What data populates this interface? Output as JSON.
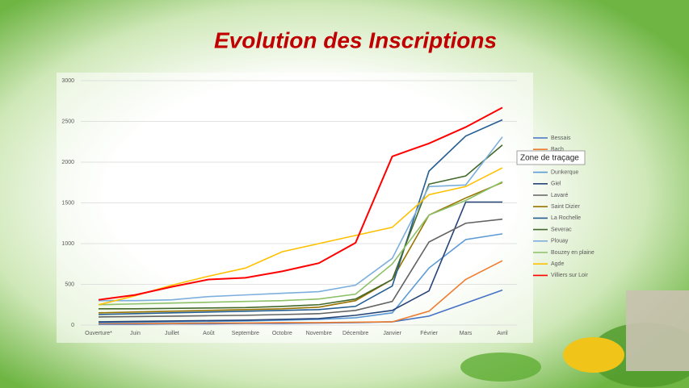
{
  "chart_data": {
    "type": "line",
    "title": "Evolution des Inscriptions",
    "tooltip": "Zone de traçage",
    "categories": [
      "Ouverture*",
      "Juin",
      "Juillet",
      "Août",
      "Septembre",
      "Octobre",
      "Novembre",
      "Décembre",
      "Janvier",
      "Février",
      "Mars",
      "Avril"
    ],
    "ylim": [
      0,
      3000
    ],
    "yticks": [
      0,
      500,
      1000,
      1500,
      2000,
      2500,
      3000
    ],
    "grid": true,
    "legend": "right",
    "series": [
      {
        "name": "Bessais",
        "color": "#4472c4",
        "values": [
          10,
          10,
          15,
          15,
          20,
          20,
          25,
          30,
          40,
          110,
          270,
          430
        ]
      },
      {
        "name": "Bach",
        "color": "#ed7d31",
        "values": [
          20,
          20,
          20,
          25,
          25,
          30,
          30,
          35,
          40,
          170,
          560,
          790
        ]
      },
      {
        "name": "Dunkerque",
        "color": "#5b9bd5",
        "values": [
          30,
          35,
          40,
          45,
          50,
          60,
          70,
          90,
          150,
          700,
          1050,
          1120
        ]
      },
      {
        "name": "Giel",
        "color": "#264478",
        "values": [
          40,
          45,
          50,
          55,
          60,
          70,
          80,
          120,
          180,
          420,
          1510,
          1510
        ]
      },
      {
        "name": "Lavaré",
        "color": "#636363",
        "values": [
          100,
          105,
          110,
          115,
          120,
          130,
          140,
          180,
          290,
          1020,
          1250,
          1300
        ]
      },
      {
        "name": "Saint Dizier",
        "color": "#997300",
        "values": [
          150,
          160,
          170,
          180,
          190,
          200,
          220,
          300,
          560,
          1350,
          1560,
          1750
        ]
      },
      {
        "name": "La Rochelle",
        "color": "#255e91",
        "values": [
          130,
          140,
          150,
          160,
          170,
          180,
          190,
          230,
          480,
          1890,
          2320,
          2520
        ]
      },
      {
        "name": "Severac",
        "color": "#43682b",
        "values": [
          200,
          200,
          205,
          210,
          215,
          230,
          250,
          320,
          560,
          1730,
          1830,
          2210
        ]
      },
      {
        "name": "Plouay",
        "color": "#7cafdd",
        "values": [
          300,
          300,
          310,
          350,
          370,
          390,
          410,
          490,
          820,
          1700,
          1720,
          2310
        ]
      },
      {
        "name": "Bouzey en plaine",
        "color": "#8cc168",
        "values": [
          250,
          260,
          270,
          280,
          290,
          300,
          320,
          380,
          750,
          1350,
          1530,
          1760
        ]
      },
      {
        "name": "Agde",
        "color": "#ffc000",
        "values": [
          250,
          360,
          490,
          600,
          700,
          900,
          1000,
          1100,
          1200,
          1600,
          1700,
          1930
        ]
      },
      {
        "name": "Villiers sur Loir",
        "color": "#ff0000",
        "values": [
          310,
          370,
          470,
          560,
          580,
          660,
          760,
          1010,
          2070,
          2230,
          2430,
          2670
        ]
      }
    ]
  }
}
